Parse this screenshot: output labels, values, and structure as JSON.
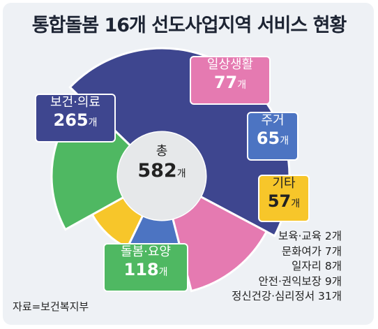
{
  "title": "통합돌봄 16개 선도사업지역 서비스 현황",
  "total": {
    "label": "총",
    "value": "582",
    "unit": "개"
  },
  "chart_data": {
    "type": "pie",
    "title": "통합돌봄 16개 선도사업지역 서비스 현황",
    "unit": "개",
    "total": 582,
    "slices": [
      {
        "label": "보건·의료",
        "value": 265,
        "color": "#3e468f"
      },
      {
        "label": "일상생활",
        "value": 77,
        "color": "#e57ab1"
      },
      {
        "label": "주거",
        "value": 65,
        "color": "#4c74c2"
      },
      {
        "label": "기타",
        "value": 57,
        "color": "#f7c62a"
      },
      {
        "label": "돌봄·요양",
        "value": 118,
        "color": "#4fb862"
      }
    ],
    "other_breakdown": [
      {
        "label": "보육·교육",
        "value": 2
      },
      {
        "label": "문화여가",
        "value": 7
      },
      {
        "label": "일자리",
        "value": 8
      },
      {
        "label": "안전·권익보장",
        "value": 9
      },
      {
        "label": "정신건강·심리정서",
        "value": 31
      }
    ]
  },
  "display": {
    "health": {
      "label": "보건·의료",
      "value": "265"
    },
    "daily": {
      "label": "일상생활",
      "value": "77"
    },
    "housing": {
      "label": "주거",
      "value": "65"
    },
    "other": {
      "label": "기타",
      "value": "57"
    },
    "care": {
      "label": "돌봄·요양",
      "value": "118"
    },
    "unit": "개",
    "other_breakdown": [
      "보육·교육 2개",
      "문화여가 7개",
      "일자리 8개",
      "안전·권익보장 9개",
      "정신건강·심리정서 31개"
    ]
  },
  "source": "자료=보건복지부"
}
